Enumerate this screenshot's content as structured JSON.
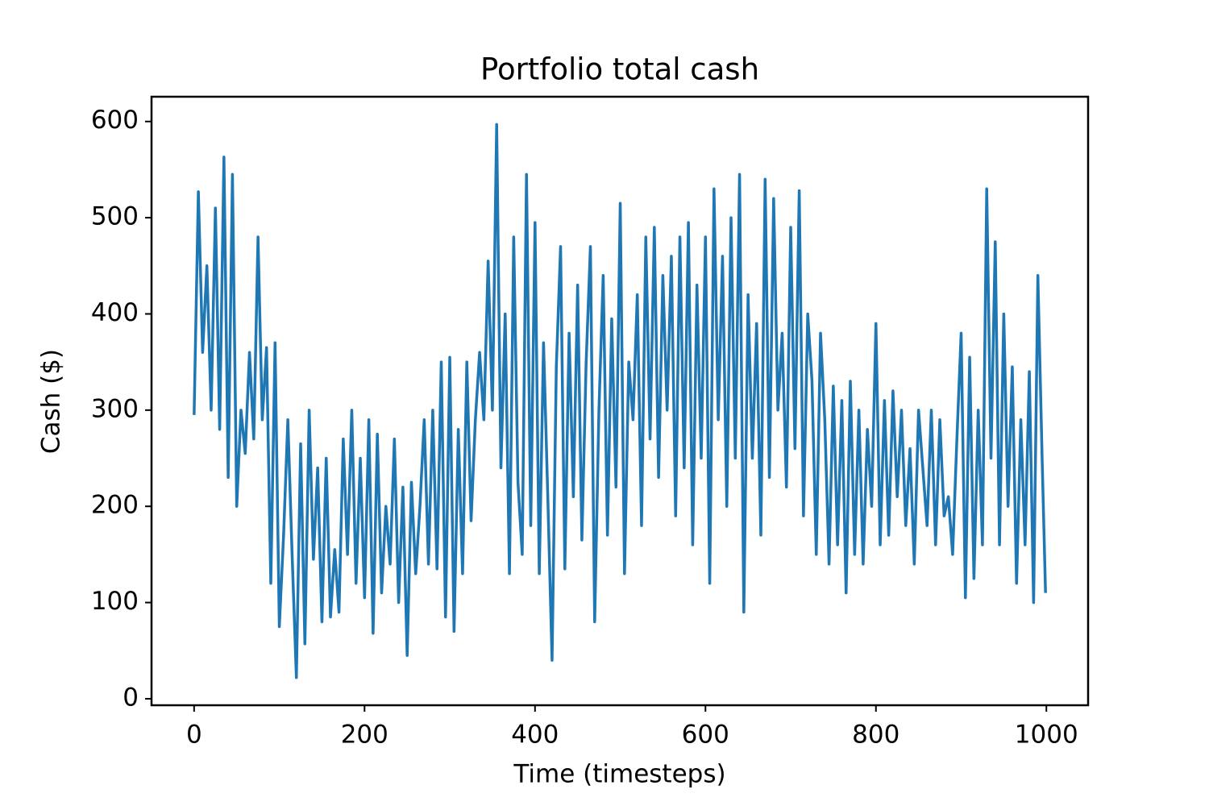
{
  "chart_data": {
    "type": "line",
    "title": "Portfolio total cash",
    "xlabel": "Time (timesteps)",
    "ylabel": "Cash ($)",
    "color": "#1f77b4",
    "x": [
      0,
      5,
      10,
      15,
      20,
      25,
      30,
      35,
      40,
      45,
      50,
      55,
      60,
      65,
      70,
      75,
      80,
      85,
      90,
      95,
      100,
      105,
      110,
      115,
      120,
      125,
      130,
      135,
      140,
      145,
      150,
      155,
      160,
      165,
      170,
      175,
      180,
      185,
      190,
      195,
      200,
      205,
      210,
      215,
      220,
      225,
      230,
      235,
      240,
      245,
      250,
      255,
      260,
      265,
      270,
      275,
      280,
      285,
      290,
      295,
      300,
      305,
      310,
      315,
      320,
      325,
      330,
      335,
      340,
      345,
      350,
      355,
      360,
      365,
      370,
      375,
      380,
      385,
      390,
      395,
      400,
      405,
      410,
      415,
      420,
      425,
      430,
      435,
      440,
      445,
      450,
      455,
      460,
      465,
      470,
      475,
      480,
      485,
      490,
      495,
      500,
      505,
      510,
      515,
      520,
      525,
      530,
      535,
      540,
      545,
      550,
      555,
      560,
      565,
      570,
      575,
      580,
      585,
      590,
      595,
      600,
      605,
      610,
      615,
      620,
      625,
      630,
      635,
      640,
      645,
      650,
      655,
      660,
      665,
      670,
      675,
      680,
      685,
      690,
      695,
      700,
      705,
      710,
      715,
      720,
      725,
      730,
      735,
      740,
      745,
      750,
      755,
      760,
      765,
      770,
      775,
      780,
      785,
      790,
      795,
      800,
      805,
      810,
      815,
      820,
      825,
      830,
      835,
      840,
      845,
      850,
      855,
      860,
      865,
      870,
      875,
      880,
      885,
      890,
      895,
      900,
      905,
      910,
      915,
      920,
      925,
      930,
      935,
      940,
      945,
      950,
      955,
      960,
      965,
      970,
      975,
      980,
      985,
      990,
      995,
      999
    ],
    "values": [
      295,
      527,
      360,
      450,
      300,
      510,
      280,
      563,
      230,
      545,
      200,
      300,
      255,
      360,
      270,
      480,
      290,
      365,
      120,
      370,
      75,
      170,
      290,
      150,
      22,
      265,
      57,
      300,
      145,
      240,
      80,
      250,
      85,
      155,
      90,
      270,
      150,
      300,
      120,
      250,
      105,
      290,
      68,
      275,
      110,
      200,
      140,
      270,
      100,
      220,
      45,
      225,
      130,
      200,
      290,
      140,
      300,
      135,
      350,
      85,
      355,
      70,
      280,
      130,
      350,
      185,
      290,
      360,
      290,
      455,
      300,
      597,
      240,
      400,
      130,
      480,
      225,
      150,
      545,
      180,
      495,
      130,
      370,
      210,
      40,
      345,
      470,
      135,
      380,
      210,
      430,
      165,
      350,
      470,
      80,
      300,
      440,
      170,
      395,
      220,
      515,
      130,
      350,
      290,
      420,
      180,
      480,
      270,
      490,
      230,
      440,
      300,
      460,
      190,
      480,
      240,
      495,
      160,
      430,
      250,
      480,
      120,
      530,
      290,
      460,
      200,
      500,
      250,
      545,
      90,
      420,
      250,
      390,
      170,
      540,
      230,
      520,
      300,
      380,
      220,
      490,
      260,
      528,
      190,
      400,
      330,
      150,
      380,
      290,
      140,
      325,
      160,
      310,
      110,
      330,
      150,
      300,
      140,
      280,
      200,
      390,
      160,
      310,
      170,
      320,
      210,
      300,
      180,
      260,
      140,
      300,
      240,
      180,
      300,
      160,
      290,
      190,
      210,
      150,
      270,
      380,
      105,
      355,
      125,
      300,
      160,
      530,
      250,
      475,
      160,
      400,
      200,
      345,
      120,
      290,
      160,
      340,
      100,
      440,
      250,
      110
    ],
    "xlim": [
      -49.95,
      1048.95
    ],
    "ylim": [
      -6.75,
      625.75
    ],
    "xticks": [
      0,
      200,
      400,
      600,
      800,
      1000
    ],
    "yticks": [
      0,
      100,
      200,
      300,
      400,
      500,
      600
    ]
  }
}
